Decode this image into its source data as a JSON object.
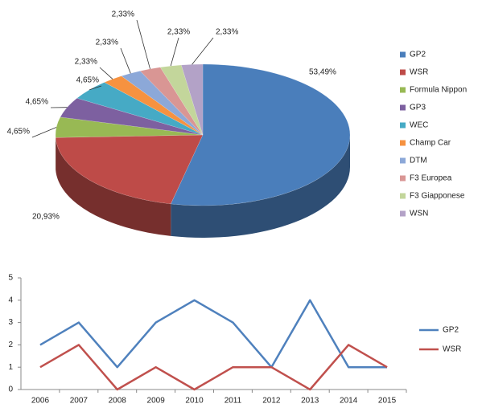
{
  "chart_data": [
    {
      "type": "pie3d",
      "categories": [
        "GP2",
        "WSR",
        "Formula Nippon",
        "GP3",
        "WEC",
        "Champ Car",
        "DTM",
        "F3 Europea",
        "F3 Giapponese",
        "WSN"
      ],
      "values": [
        53.49,
        20.93,
        4.65,
        4.65,
        4.65,
        2.33,
        2.33,
        2.33,
        2.33,
        2.33
      ],
      "value_labels": [
        "53,49%",
        "20,93%",
        "4,65%",
        "4,65%",
        "4,65%",
        "2,33%",
        "2,33%",
        "2,33%",
        "2,33%",
        "2,33%"
      ],
      "colors": [
        "#4a7ebb",
        "#be4b48",
        "#98b954",
        "#7d60a0",
        "#46aac5",
        "#f69240",
        "#8ca8d8",
        "#d99694",
        "#c3d69b",
        "#b3a2c7"
      ]
    },
    {
      "type": "line",
      "categories": [
        "2006",
        "2007",
        "2008",
        "2009",
        "2010",
        "2011",
        "2012",
        "2013",
        "2014",
        "2015"
      ],
      "series": [
        {
          "name": "GP2",
          "color": "#4f81bd",
          "values": [
            2,
            3,
            1,
            3,
            4,
            3,
            1,
            4,
            1,
            1
          ]
        },
        {
          "name": "WSR",
          "color": "#c0504d",
          "values": [
            1,
            2,
            0,
            1,
            0,
            1,
            1,
            0,
            2,
            1
          ]
        }
      ],
      "ylim": [
        0,
        5
      ],
      "yticks": [
        0,
        1,
        2,
        3,
        4,
        5
      ],
      "grid": false
    }
  ]
}
